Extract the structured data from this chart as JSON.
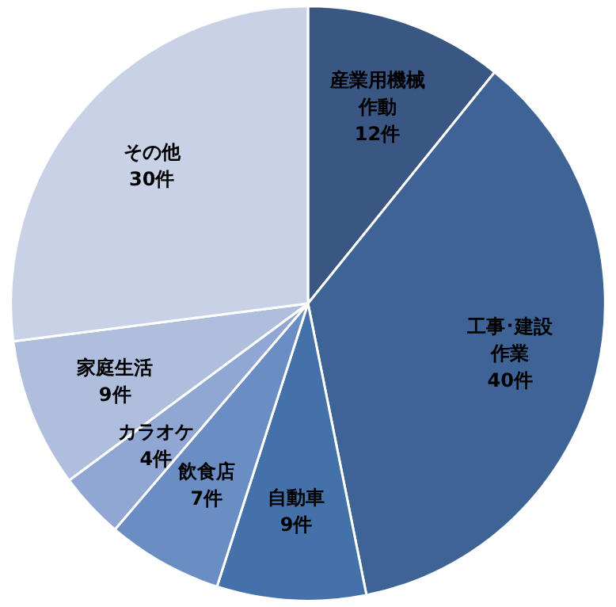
{
  "chart_data": {
    "type": "pie",
    "categories": [
      "産業用機械作動",
      "工事･建設作業",
      "自動車",
      "飲食店",
      "カラオケ",
      "家庭生活",
      "その他"
    ],
    "values": [
      12,
      40,
      9,
      7,
      4,
      9,
      30
    ],
    "value_labels": [
      "12件",
      "40件",
      "9件",
      "7件",
      "4件",
      "9件",
      "30件"
    ],
    "colors": [
      "#3a5683",
      "#3e6496",
      "#4571aa",
      "#6a8dc3",
      "#90a6d3",
      "#afbedd",
      "#c8d1e5"
    ],
    "legend": false
  }
}
